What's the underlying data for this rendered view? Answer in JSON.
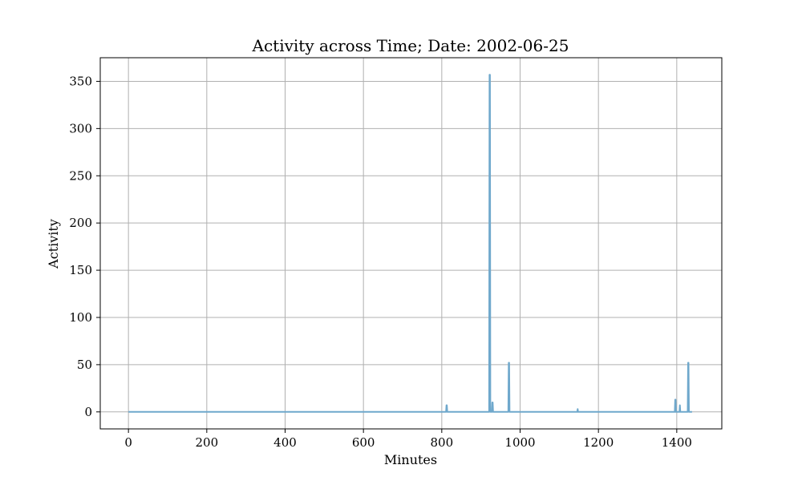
{
  "chart_data": {
    "type": "line",
    "title": "Activity across Time; Date: 2002-06-25",
    "xlabel": "Minutes",
    "ylabel": "Activity",
    "xlim": [
      -72,
      1515
    ],
    "ylim": [
      -18,
      375
    ],
    "xticks": [
      0,
      200,
      400,
      600,
      800,
      1000,
      1200,
      1400
    ],
    "yticks": [
      0,
      50,
      100,
      150,
      200,
      250,
      300,
      350
    ],
    "grid": true,
    "colors": {
      "line": "#6fa8cc"
    },
    "series": [
      {
        "x": [
          0,
          811,
          812,
          813,
          814,
          921,
          922,
          923,
          924,
          925,
          928,
          929,
          930,
          931,
          970,
          971,
          972,
          973,
          1146,
          1147,
          1148,
          1395,
          1396,
          1397,
          1398,
          1407,
          1408,
          1409,
          1428,
          1429,
          1430,
          1431,
          1432,
          1439
        ],
        "values": [
          0,
          0,
          7,
          7,
          0,
          0,
          357,
          357,
          0,
          0,
          0,
          10,
          10,
          0,
          0,
          52,
          52,
          0,
          0,
          3,
          0,
          0,
          13,
          13,
          0,
          0,
          7,
          0,
          0,
          52,
          52,
          0,
          0,
          0
        ]
      }
    ]
  }
}
